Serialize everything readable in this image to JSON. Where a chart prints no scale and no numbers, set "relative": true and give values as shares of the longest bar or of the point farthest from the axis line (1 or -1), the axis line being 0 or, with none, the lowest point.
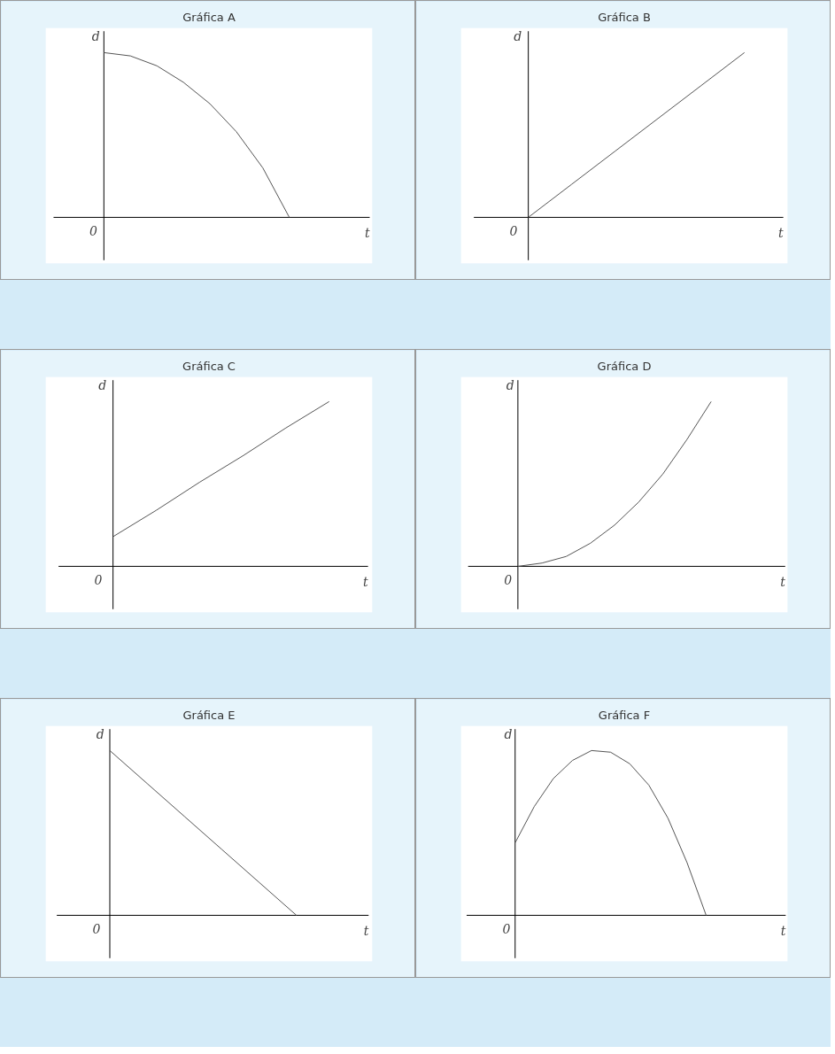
{
  "chart_data": [
    {
      "type": "line",
      "title": "Gráfica A",
      "xlabel": "t",
      "ylabel": "d",
      "annotations": [
        "0"
      ],
      "relative": true,
      "categories": [
        null,
        null,
        null,
        null,
        null,
        null,
        null,
        null,
        null,
        null
      ],
      "series": [
        {
          "color": "#555555",
          "values": [
            1,
            0.98,
            0.92,
            0.82,
            0.69,
            0.52,
            0.3,
            0.0,
            null,
            null
          ]
        }
      ]
    },
    {
      "type": "line",
      "title": "Gráfica B",
      "xlabel": "t",
      "ylabel": "d",
      "annotations": [
        "0"
      ],
      "relative": true,
      "categories": [
        null,
        null,
        null,
        null,
        null,
        null
      ],
      "series": [
        {
          "color": "#555555",
          "values": [
            0,
            0.2,
            0.4,
            0.6,
            0.8,
            1
          ]
        }
      ]
    },
    {
      "type": "line",
      "title": "Gráfica C",
      "xlabel": "t",
      "ylabel": "d",
      "annotations": [
        "0"
      ],
      "relative": true,
      "categories": [
        null,
        null,
        null,
        null,
        null,
        null
      ],
      "series": [
        {
          "color": "#555555",
          "values": [
            0.18,
            0.34,
            0.51,
            0.67,
            0.84,
            1
          ]
        }
      ]
    },
    {
      "type": "line",
      "title": "Gráfica D",
      "xlabel": "t",
      "ylabel": "d",
      "annotations": [
        "0"
      ],
      "relative": true,
      "categories": [
        null,
        null,
        null,
        null,
        null,
        null,
        null,
        null,
        null,
        null,
        null
      ],
      "series": [
        {
          "color": "#555555",
          "values": [
            0,
            0.02,
            0.06,
            0.14,
            0.25,
            0.39,
            0.56,
            0.77,
            1,
            null,
            null
          ]
        }
      ]
    },
    {
      "type": "line",
      "title": "Gráfica E",
      "xlabel": "t",
      "ylabel": "d",
      "annotations": [
        "0"
      ],
      "relative": true,
      "categories": [
        null,
        null,
        null,
        null,
        null,
        null,
        null
      ],
      "series": [
        {
          "color": "#555555",
          "values": [
            1,
            0.8,
            0.6,
            0.4,
            0.2,
            0,
            null
          ]
        }
      ]
    },
    {
      "type": "line",
      "title": "Gráfica F",
      "xlabel": "t",
      "ylabel": "d",
      "annotations": [
        "0"
      ],
      "relative": true,
      "categories": [
        null,
        null,
        null,
        null,
        null,
        null,
        null,
        null,
        null,
        null,
        null,
        null,
        null,
        null
      ],
      "series": [
        {
          "color": "#555555",
          "values": [
            0.44,
            0.66,
            0.83,
            0.94,
            1,
            0.99,
            0.92,
            0.79,
            0.59,
            0.32,
            0,
            null,
            null,
            null
          ]
        }
      ]
    }
  ]
}
